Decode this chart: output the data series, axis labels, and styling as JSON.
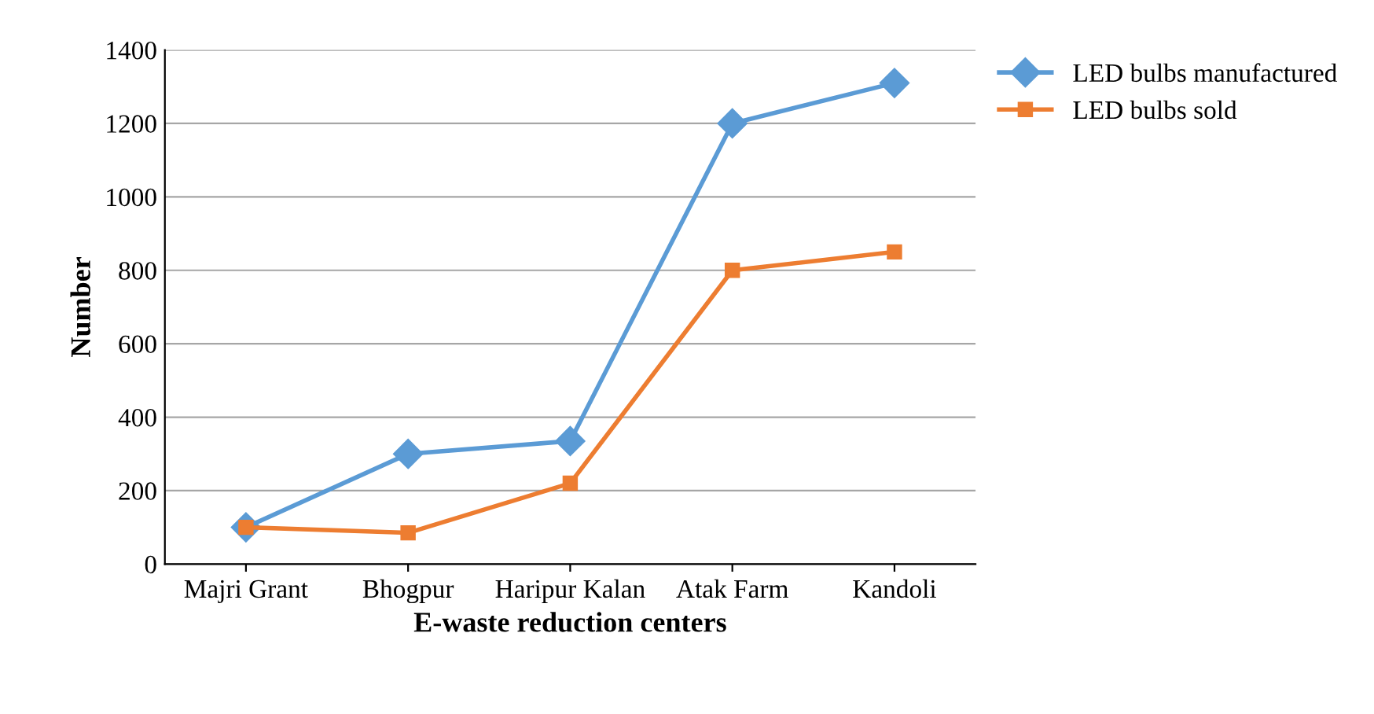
{
  "chart_data": {
    "type": "line",
    "xlabel": "E-waste reduction centers",
    "ylabel": "Number",
    "categories": [
      "Majri Grant",
      "Bhogpur",
      "Haripur Kalan",
      "Atak Farm",
      "Kandoli"
    ],
    "series": [
      {
        "name": "LED bulbs manufactured",
        "color": "#5b9bd5",
        "marker": "diamond",
        "values": [
          100,
          300,
          335,
          1200,
          1310
        ]
      },
      {
        "name": "LED bulbs sold",
        "color": "#ed7d31",
        "marker": "square",
        "values": [
          100,
          85,
          220,
          800,
          850
        ]
      }
    ],
    "ylim": [
      0,
      1400
    ],
    "yticks": [
      0,
      200,
      400,
      600,
      800,
      1000,
      1200,
      1400
    ],
    "grid": "y",
    "legend": "top right",
    "line_style": "solid"
  }
}
